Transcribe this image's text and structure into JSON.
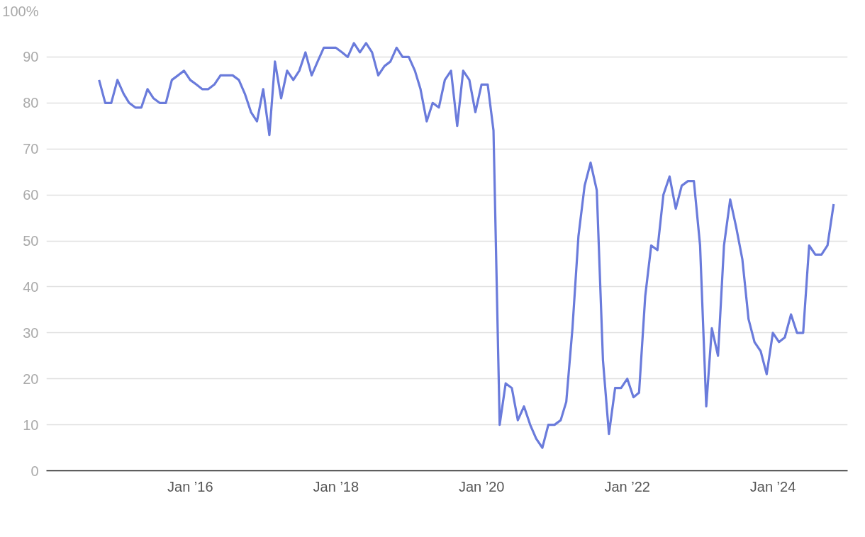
{
  "chart_data": {
    "type": "line",
    "x": [
      "2014-10",
      "2014-11",
      "2014-12",
      "2015-01",
      "2015-02",
      "2015-03",
      "2015-04",
      "2015-05",
      "2015-06",
      "2015-07",
      "2015-08",
      "2015-09",
      "2015-10",
      "2015-11",
      "2015-12",
      "2016-01",
      "2016-02",
      "2016-03",
      "2016-04",
      "2016-05",
      "2016-06",
      "2016-07",
      "2016-08",
      "2016-09",
      "2016-10",
      "2016-11",
      "2016-12",
      "2017-01",
      "2017-02",
      "2017-03",
      "2017-04",
      "2017-05",
      "2017-06",
      "2017-07",
      "2017-08",
      "2017-09",
      "2017-10",
      "2017-11",
      "2017-12",
      "2018-01",
      "2018-02",
      "2018-03",
      "2018-04",
      "2018-05",
      "2018-06",
      "2018-07",
      "2018-08",
      "2018-09",
      "2018-10",
      "2018-11",
      "2018-12",
      "2019-01",
      "2019-02",
      "2019-03",
      "2019-04",
      "2019-05",
      "2019-06",
      "2019-07",
      "2019-08",
      "2019-09",
      "2019-10",
      "2019-11",
      "2019-12",
      "2020-01",
      "2020-02",
      "2020-03",
      "2020-04",
      "2020-05",
      "2020-06",
      "2020-07",
      "2020-08",
      "2020-09",
      "2020-10",
      "2020-11",
      "2020-12",
      "2021-01",
      "2021-02",
      "2021-03",
      "2021-04",
      "2021-05",
      "2021-06",
      "2021-07",
      "2021-08",
      "2021-09",
      "2021-10",
      "2021-11",
      "2021-12",
      "2022-01",
      "2022-02",
      "2022-03",
      "2022-04",
      "2022-05",
      "2022-06",
      "2022-07",
      "2022-08",
      "2022-09",
      "2022-10",
      "2022-11",
      "2022-12",
      "2023-01",
      "2023-02",
      "2023-03",
      "2023-04",
      "2023-05",
      "2023-06",
      "2023-07",
      "2023-08",
      "2023-09",
      "2023-10",
      "2023-11",
      "2023-12",
      "2024-01",
      "2024-02",
      "2024-03",
      "2024-04",
      "2024-05",
      "2024-06",
      "2024-07",
      "2024-08",
      "2024-09",
      "2024-10",
      "2024-11"
    ],
    "grid": "y",
    "marker": "none",
    "line_style": "solid",
    "xlim": [
      "2014-01-10",
      "2025-01-10"
    ],
    "xticks": [
      {
        "value": "2016-01",
        "label": "Jan ’16"
      },
      {
        "value": "2018-01",
        "label": "Jan ’18"
      },
      {
        "value": "2020-01",
        "label": "Jan ’20"
      },
      {
        "value": "2022-01",
        "label": "Jan ’22"
      },
      {
        "value": "2024-01",
        "label": "Jan ’24"
      }
    ],
    "ylim": [
      0,
      100
    ],
    "yticks": [
      0,
      10,
      20,
      30,
      40,
      50,
      60,
      70,
      80,
      90,
      {
        "value": 100,
        "label": "100%"
      }
    ],
    "series": [
      {
        "color": "#6a7bdb",
        "values": [
          85,
          80,
          80,
          85,
          82,
          80,
          79,
          79,
          83,
          81,
          80,
          80,
          85,
          86,
          87,
          85,
          84,
          83,
          83,
          84,
          86,
          86,
          86,
          85,
          82,
          78,
          76,
          83,
          73,
          89,
          81,
          87,
          85,
          87,
          91,
          86,
          89,
          92,
          92,
          92,
          91,
          90,
          93,
          91,
          93,
          91,
          86,
          88,
          89,
          92,
          90,
          90,
          87,
          83,
          76,
          80,
          79,
          85,
          87,
          75,
          87,
          85,
          78,
          84,
          84,
          74,
          10,
          19,
          18,
          11,
          14,
          10,
          7,
          5,
          10,
          10,
          11,
          15,
          31,
          51,
          62,
          67,
          61,
          24,
          8,
          18,
          18,
          20,
          16,
          17,
          38,
          49,
          48,
          60,
          64,
          57,
          62,
          63,
          63,
          49,
          14,
          31,
          25,
          49,
          59,
          53,
          46,
          33,
          28,
          26,
          21,
          30,
          28,
          29,
          34,
          30,
          30,
          49,
          47,
          47,
          49,
          58
        ]
      }
    ]
  }
}
